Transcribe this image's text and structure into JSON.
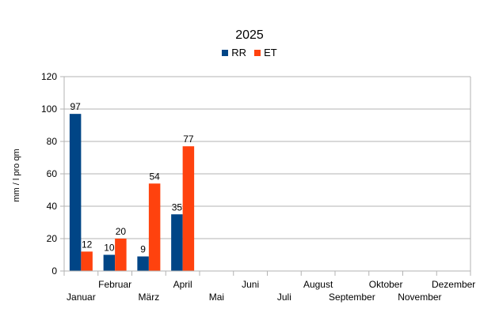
{
  "chart_data": {
    "type": "bar",
    "title": "2025",
    "xlabel": "",
    "ylabel": "mm / l pro qm",
    "ylim": [
      0,
      120
    ],
    "yticks": [
      0,
      20,
      40,
      60,
      80,
      100,
      120
    ],
    "grid": true,
    "legend_position": "top-center",
    "categories": [
      "Januar",
      "Februar",
      "März",
      "April",
      "Mai",
      "Juni",
      "Juli",
      "August",
      "September",
      "Oktober",
      "November",
      "Dezember"
    ],
    "series": [
      {
        "name": "RR",
        "color": "#004586",
        "values": [
          97,
          10,
          9,
          35,
          null,
          null,
          null,
          null,
          null,
          null,
          null,
          null
        ]
      },
      {
        "name": "ET",
        "color": "#ff420e",
        "values": [
          12,
          20,
          54,
          77,
          null,
          null,
          null,
          null,
          null,
          null,
          null,
          null
        ]
      }
    ]
  }
}
